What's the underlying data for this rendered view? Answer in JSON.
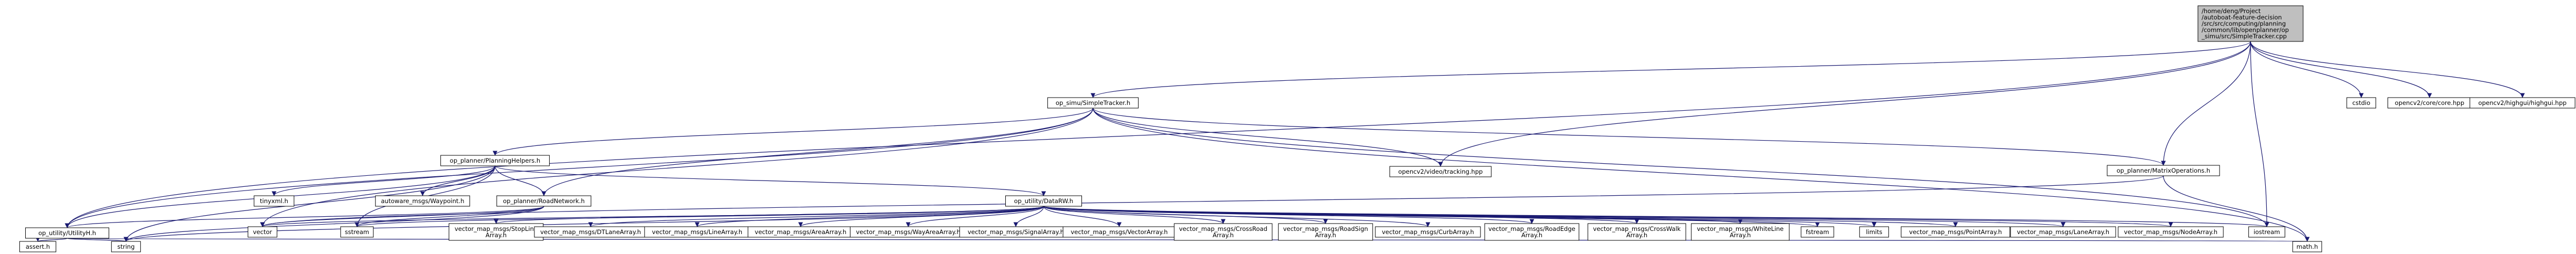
{
  "colors": {
    "edge": "#191970",
    "node_border": "#000000",
    "node_fill": "#ffffff",
    "root_fill": "#bfbfbf",
    "text": "#000000",
    "background": "#ffffff"
  },
  "nodes": [
    {
      "id": "root",
      "lines": [
        "/home/deng/Project",
        "/autoboat-feature-decision",
        "/src/src/computing/planning",
        "/common/lib/openplanner/op",
        "_simu/src/SimpleTracker.cpp"
      ],
      "root": true
    },
    {
      "id": "simpletracker",
      "lines": [
        "op_simu/SimpleTracker.h"
      ]
    },
    {
      "id": "cstdio",
      "lines": [
        "cstdio"
      ]
    },
    {
      "id": "opencv_core",
      "lines": [
        "opencv2/core/core.hpp"
      ]
    },
    {
      "id": "opencv_highgui",
      "lines": [
        "opencv2/highgui/highgui.hpp"
      ]
    },
    {
      "id": "planninghelpers",
      "lines": [
        "op_planner/PlanningHelpers.h"
      ]
    },
    {
      "id": "opencv_tracking",
      "lines": [
        "opencv2/video/tracking.hpp"
      ]
    },
    {
      "id": "matrixoperations",
      "lines": [
        "op_planner/MatrixOperations.h"
      ]
    },
    {
      "id": "tinyxml",
      "lines": [
        "tinyxml.h"
      ]
    },
    {
      "id": "waypoint",
      "lines": [
        "autoware_msgs/Waypoint.h"
      ]
    },
    {
      "id": "roadnetwork",
      "lines": [
        "op_planner/RoadNetwork.h"
      ]
    },
    {
      "id": "datarw",
      "lines": [
        "op_utility/DataRW.h"
      ]
    },
    {
      "id": "utilityh",
      "lines": [
        "op_utility/UtilityH.h"
      ]
    },
    {
      "id": "vector",
      "lines": [
        "vector"
      ]
    },
    {
      "id": "sstream",
      "lines": [
        "sstream"
      ]
    },
    {
      "id": "stopline",
      "lines": [
        "vector_map_msgs/StopLine",
        "Array.h"
      ]
    },
    {
      "id": "dtlane",
      "lines": [
        "vector_map_msgs/DTLaneArray.h"
      ]
    },
    {
      "id": "linearray",
      "lines": [
        "vector_map_msgs/LineArray.h"
      ]
    },
    {
      "id": "areaarray",
      "lines": [
        "vector_map_msgs/AreaArray.h"
      ]
    },
    {
      "id": "wayarea",
      "lines": [
        "vector_map_msgs/WayAreaArray.h"
      ]
    },
    {
      "id": "signal",
      "lines": [
        "vector_map_msgs/SignalArray.h"
      ]
    },
    {
      "id": "vector_arr",
      "lines": [
        "vector_map_msgs/VectorArray.h"
      ]
    },
    {
      "id": "crossroad",
      "lines": [
        "vector_map_msgs/CrossRoad",
        "Array.h"
      ]
    },
    {
      "id": "roadsign",
      "lines": [
        "vector_map_msgs/RoadSign",
        "Array.h"
      ]
    },
    {
      "id": "curb",
      "lines": [
        "vector_map_msgs/CurbArray.h"
      ]
    },
    {
      "id": "roadedge",
      "lines": [
        "vector_map_msgs/RoadEdge",
        "Array.h"
      ]
    },
    {
      "id": "crosswalk",
      "lines": [
        "vector_map_msgs/CrossWalk",
        "Array.h"
      ]
    },
    {
      "id": "whiteline",
      "lines": [
        "vector_map_msgs/WhiteLine",
        "Array.h"
      ]
    },
    {
      "id": "fstream",
      "lines": [
        "fstream"
      ]
    },
    {
      "id": "limits",
      "lines": [
        "limits"
      ]
    },
    {
      "id": "point",
      "lines": [
        "vector_map_msgs/PointArray.h"
      ]
    },
    {
      "id": "lane",
      "lines": [
        "vector_map_msgs/LaneArray.h"
      ]
    },
    {
      "id": "nodearray",
      "lines": [
        "vector_map_msgs/NodeArray.h"
      ]
    },
    {
      "id": "iostream",
      "lines": [
        "iostream"
      ]
    },
    {
      "id": "asserth",
      "lines": [
        "assert.h"
      ]
    },
    {
      "id": "string",
      "lines": [
        "string"
      ]
    },
    {
      "id": "mathh",
      "lines": [
        "math.h"
      ]
    }
  ],
  "edges": [
    [
      "root",
      "simpletracker"
    ],
    [
      "root",
      "cstdio"
    ],
    [
      "root",
      "opencv_core"
    ],
    [
      "root",
      "opencv_highgui"
    ],
    [
      "root",
      "utilityh"
    ],
    [
      "root",
      "matrixoperations"
    ],
    [
      "root",
      "iostream"
    ],
    [
      "root",
      "opencv_tracking"
    ],
    [
      "simpletracker",
      "planninghelpers"
    ],
    [
      "simpletracker",
      "opencv_tracking"
    ],
    [
      "simpletracker",
      "matrixoperations"
    ],
    [
      "simpletracker",
      "roadnetwork"
    ],
    [
      "simpletracker",
      "utilityh"
    ],
    [
      "simpletracker",
      "vector"
    ],
    [
      "simpletracker",
      "mathh"
    ],
    [
      "simpletracker",
      "iostream"
    ],
    [
      "planninghelpers",
      "tinyxml"
    ],
    [
      "planninghelpers",
      "waypoint"
    ],
    [
      "planninghelpers",
      "roadnetwork"
    ],
    [
      "planninghelpers",
      "datarw"
    ],
    [
      "planninghelpers",
      "utilityh"
    ],
    [
      "planninghelpers",
      "sstream"
    ],
    [
      "planninghelpers",
      "string"
    ],
    [
      "matrixoperations",
      "vector"
    ],
    [
      "matrixoperations",
      "mathh"
    ],
    [
      "roadnetwork",
      "vector"
    ],
    [
      "roadnetwork",
      "sstream"
    ],
    [
      "roadnetwork",
      "string"
    ],
    [
      "roadnetwork",
      "utilityh"
    ],
    [
      "datarw",
      "vector"
    ],
    [
      "datarw",
      "sstream"
    ],
    [
      "datarw",
      "string"
    ],
    [
      "datarw",
      "stopline"
    ],
    [
      "datarw",
      "dtlane"
    ],
    [
      "datarw",
      "linearray"
    ],
    [
      "datarw",
      "areaarray"
    ],
    [
      "datarw",
      "wayarea"
    ],
    [
      "datarw",
      "signal"
    ],
    [
      "datarw",
      "vector_arr"
    ],
    [
      "datarw",
      "crossroad"
    ],
    [
      "datarw",
      "roadsign"
    ],
    [
      "datarw",
      "curb"
    ],
    [
      "datarw",
      "roadedge"
    ],
    [
      "datarw",
      "crosswalk"
    ],
    [
      "datarw",
      "whiteline"
    ],
    [
      "datarw",
      "fstream"
    ],
    [
      "datarw",
      "limits"
    ],
    [
      "datarw",
      "point"
    ],
    [
      "datarw",
      "lane"
    ],
    [
      "datarw",
      "nodearray"
    ],
    [
      "datarw",
      "iostream"
    ],
    [
      "utilityh",
      "asserth"
    ],
    [
      "utilityh",
      "string"
    ],
    [
      "utilityh",
      "mathh"
    ]
  ]
}
